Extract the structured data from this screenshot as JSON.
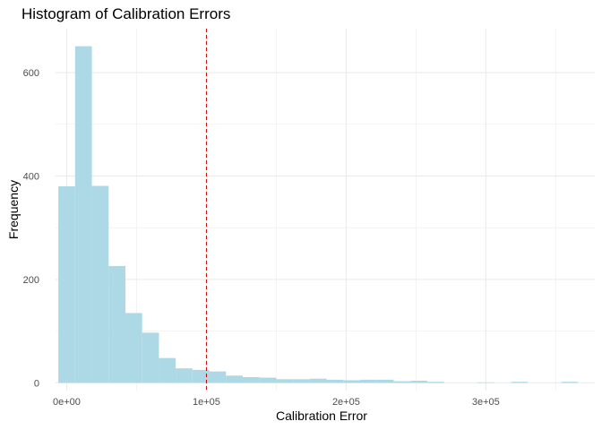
{
  "chart_data": {
    "type": "bar",
    "title": "Histogram of Calibration Errors",
    "xlabel": "Calibration Error",
    "ylabel": "Frequency",
    "xlim": [
      -8000,
      378000
    ],
    "ylim": [
      -15,
      685
    ],
    "bin_width": 12000,
    "bins": [
      {
        "start": -6000,
        "end": 6000,
        "count": 380
      },
      {
        "start": 6000,
        "end": 18000,
        "count": 651
      },
      {
        "start": 18000,
        "end": 30000,
        "count": 381
      },
      {
        "start": 30000,
        "end": 42000,
        "count": 226
      },
      {
        "start": 42000,
        "end": 54000,
        "count": 135
      },
      {
        "start": 54000,
        "end": 66000,
        "count": 97
      },
      {
        "start": 66000,
        "end": 78000,
        "count": 48
      },
      {
        "start": 78000,
        "end": 90000,
        "count": 28
      },
      {
        "start": 90000,
        "end": 102000,
        "count": 25
      },
      {
        "start": 102000,
        "end": 114000,
        "count": 22
      },
      {
        "start": 114000,
        "end": 126000,
        "count": 14
      },
      {
        "start": 126000,
        "end": 138000,
        "count": 11
      },
      {
        "start": 138000,
        "end": 150000,
        "count": 10
      },
      {
        "start": 150000,
        "end": 162000,
        "count": 7
      },
      {
        "start": 162000,
        "end": 174000,
        "count": 7
      },
      {
        "start": 174000,
        "end": 186000,
        "count": 8
      },
      {
        "start": 186000,
        "end": 198000,
        "count": 6
      },
      {
        "start": 198000,
        "end": 210000,
        "count": 5
      },
      {
        "start": 210000,
        "end": 222000,
        "count": 6
      },
      {
        "start": 222000,
        "end": 234000,
        "count": 6
      },
      {
        "start": 234000,
        "end": 246000,
        "count": 3
      },
      {
        "start": 246000,
        "end": 258000,
        "count": 4
      },
      {
        "start": 258000,
        "end": 270000,
        "count": 2
      },
      {
        "start": 270000,
        "end": 282000,
        "count": 0
      },
      {
        "start": 282000,
        "end": 294000,
        "count": 0
      },
      {
        "start": 294000,
        "end": 306000,
        "count": 1
      },
      {
        "start": 306000,
        "end": 318000,
        "count": 0
      },
      {
        "start": 318000,
        "end": 330000,
        "count": 2
      },
      {
        "start": 330000,
        "end": 342000,
        "count": 0
      },
      {
        "start": 342000,
        "end": 354000,
        "count": 0
      },
      {
        "start": 354000,
        "end": 366000,
        "count": 2
      }
    ],
    "x_ticks": [
      {
        "value": 0,
        "label": "0e+00"
      },
      {
        "value": 100000,
        "label": "1e+05"
      },
      {
        "value": 200000,
        "label": "2e+05"
      },
      {
        "value": 300000,
        "label": "3e+05"
      }
    ],
    "y_ticks": [
      {
        "value": 0,
        "label": "0"
      },
      {
        "value": 200,
        "label": "200"
      },
      {
        "value": 400,
        "label": "400"
      },
      {
        "value": 600,
        "label": "600"
      }
    ],
    "reference_line": {
      "x": 100000,
      "style": "dashed"
    },
    "grid": true,
    "colors": {
      "bar": "#add8e6",
      "reference_line": "#cc0000",
      "grid": "#ebebeb"
    }
  }
}
